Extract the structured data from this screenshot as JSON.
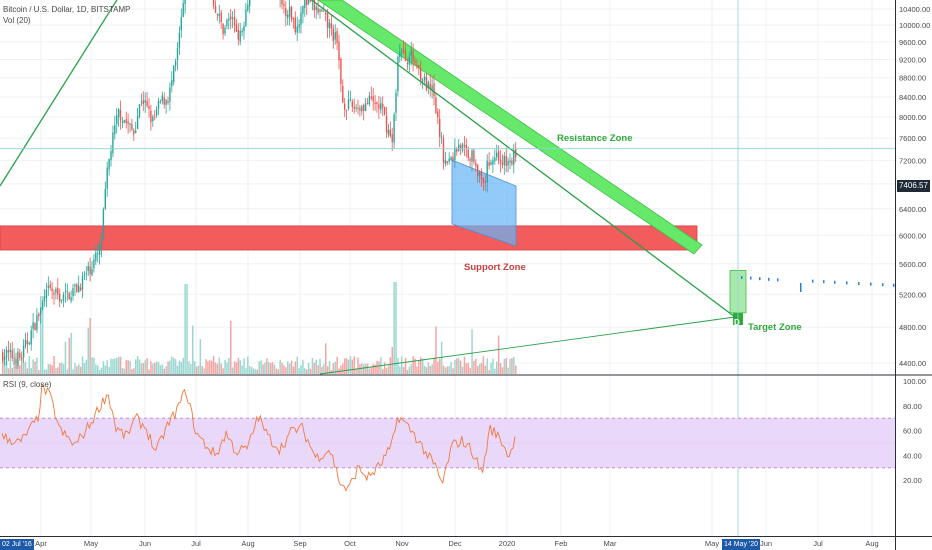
{
  "header": {
    "symbol_line": "Bitcoin / U.S. Dollar, 1D, BITSTAMP",
    "volume_label": "Vol (20)",
    "rsi_label": "RSI (9, close)"
  },
  "annotations": {
    "resistance": "Resistance Zone",
    "support": "Support Zone",
    "target": "Target Zone",
    "target_marker": "D"
  },
  "current_price_tag": "7406.57",
  "date_tags": {
    "left": "02 Jul '16",
    "right": "14 May '20"
  },
  "colors": {
    "up": "#26a69a",
    "down": "#ef5350",
    "resistance_fill": "#66e86a",
    "support_fill": "#f25c5c",
    "channel_fill": "#64b5f6",
    "rsi_line": "#f07a3c",
    "rsi_band": "#ead8fb",
    "trend_line": "#27a04a",
    "crosshair": "#8fd1d8"
  },
  "chart_data": {
    "type": "candlestick",
    "title": "Bitcoin / U.S. Dollar, 1D, BITSTAMP",
    "xlabel": "",
    "ylabel": "",
    "x_tick_labels": [
      "Apr",
      "May",
      "Jun",
      "Jul",
      "Aug",
      "Sep",
      "Oct",
      "Nov",
      "Dec",
      "2020",
      "Feb",
      "Mar",
      "May",
      "Jun",
      "Jul",
      "Aug"
    ],
    "price_axis": {
      "ticks": [
        4400,
        4800,
        5200,
        5600,
        6000,
        6400,
        6800,
        7200,
        7600,
        8000,
        8400,
        8800,
        9200,
        9600,
        10000,
        10400
      ],
      "range": [
        4180,
        10650
      ],
      "scale": "log"
    },
    "rsi_axis": {
      "ticks": [
        20,
        40,
        60,
        80,
        100
      ],
      "range": [
        0,
        100
      ],
      "band": [
        30,
        70
      ]
    },
    "last_price": 7406.57,
    "zones": {
      "support": [
        5790,
        6140
      ],
      "target": [
        4970,
        5510
      ],
      "target_projection": [
        5540,
        5850
      ]
    },
    "grid": true,
    "legend": "none"
  }
}
